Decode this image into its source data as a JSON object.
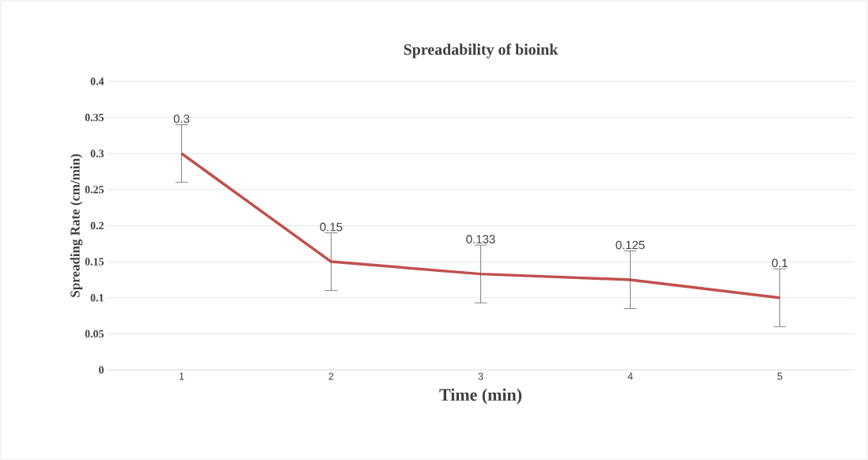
{
  "chart_data": {
    "type": "line",
    "title": "Spreadability of  bioink",
    "xlabel": "Time  (min)",
    "ylabel": "Spreading Rate (cm/min)",
    "categories": [
      "1",
      "2",
      "3",
      "4",
      "5"
    ],
    "values": [
      0.3,
      0.15,
      0.133,
      0.125,
      0.1
    ],
    "errors": [
      0.04,
      0.04,
      0.04,
      0.04,
      0.04
    ],
    "color": "#c0504d",
    "ylim": [
      0,
      0.4
    ],
    "yticks": [
      0,
      0.05,
      0.1,
      0.15,
      0.2,
      0.25,
      0.3,
      0.35,
      0.4
    ],
    "grid": "y",
    "data_labels": true,
    "marker": "none",
    "line_style": "solid"
  }
}
